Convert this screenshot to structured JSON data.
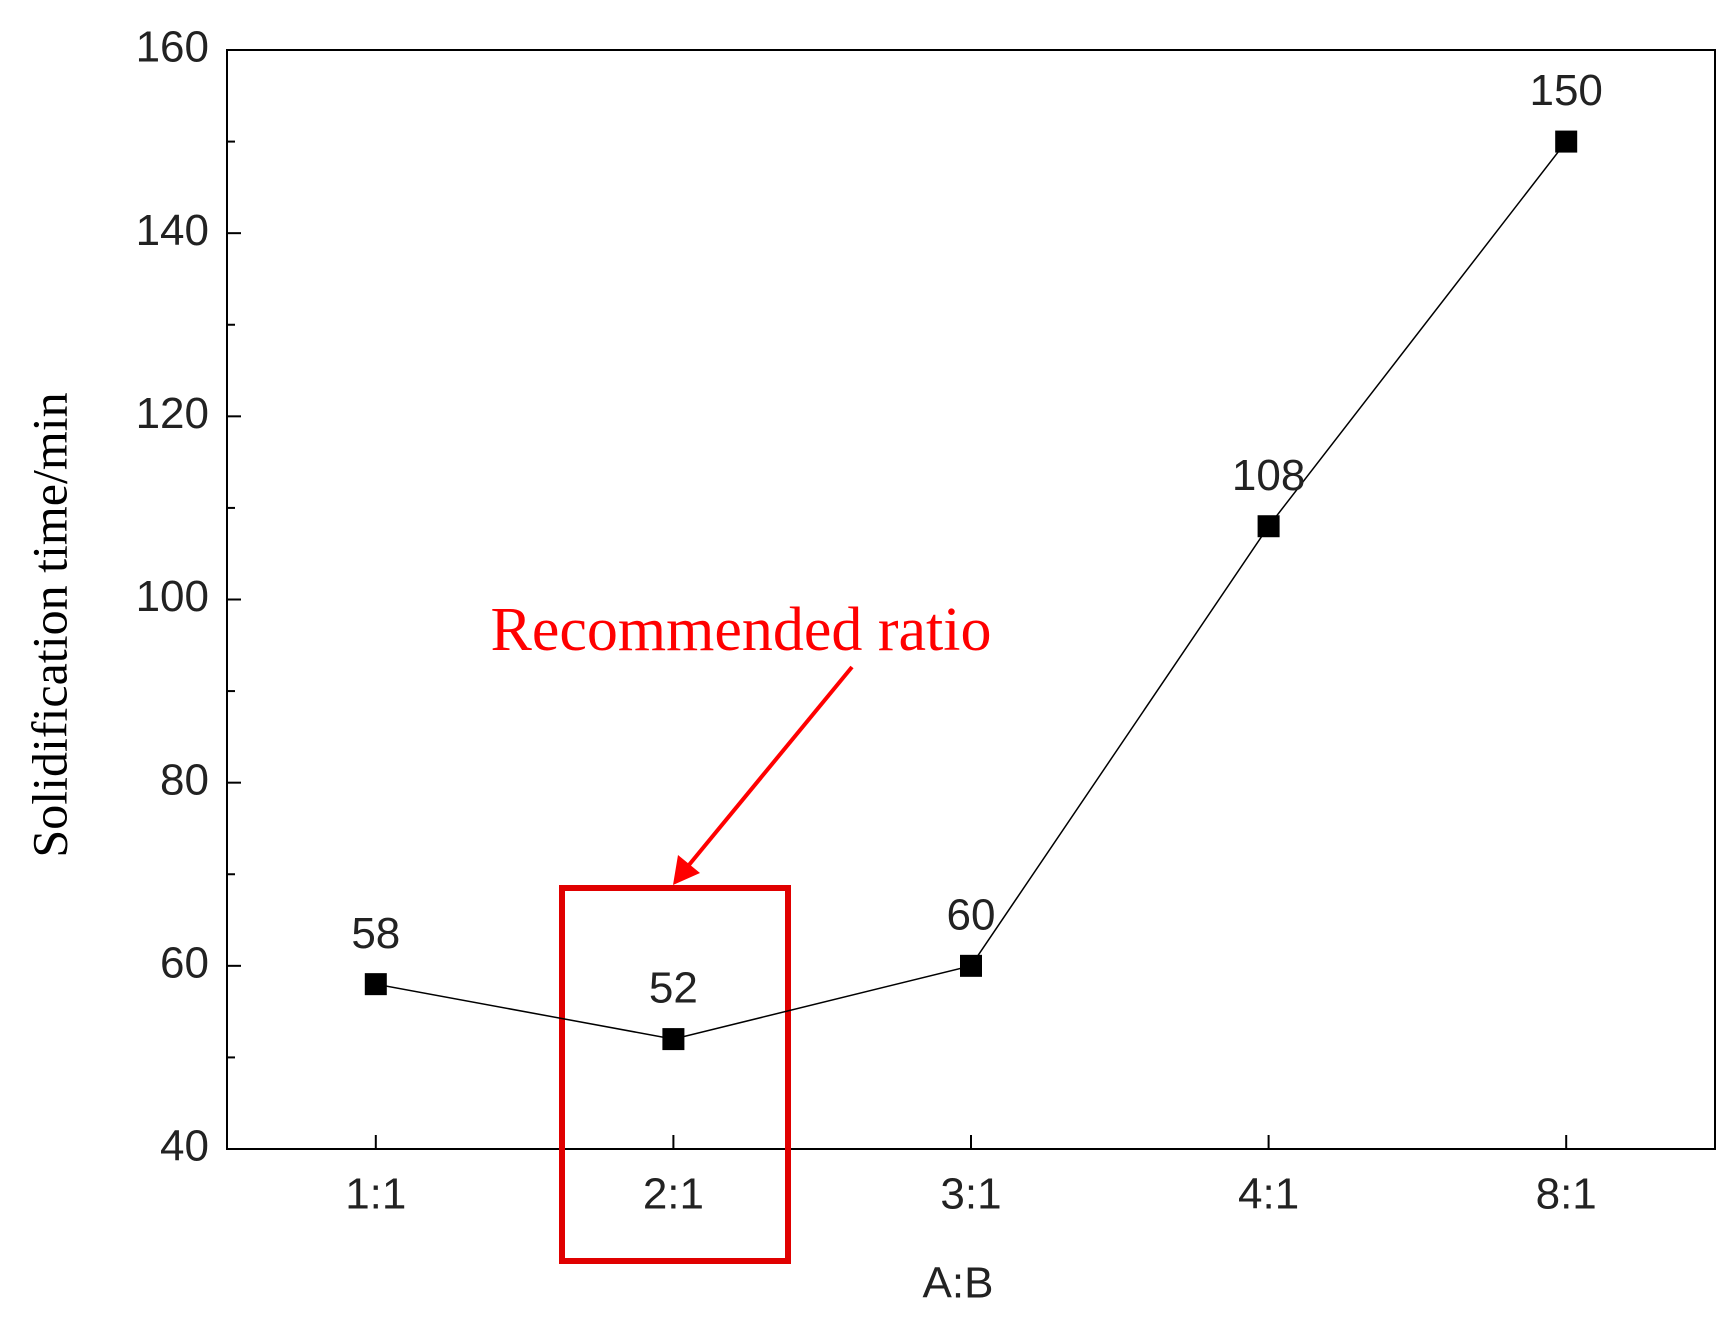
{
  "chart_data": {
    "type": "line",
    "x_label": "A:B",
    "y_label": "Solidification time/min",
    "annotation": "Recommended ratio",
    "categories": [
      "1:1",
      "2:1",
      "3:1",
      "4:1",
      "8:1"
    ],
    "series": [
      {
        "color": "#000000",
        "values": [
          58,
          52,
          60,
          108,
          150
        ]
      }
    ],
    "ylim": [
      40,
      160
    ],
    "yticks": [
      40,
      60,
      80,
      100,
      120,
      140,
      160
    ],
    "grid": false
  }
}
